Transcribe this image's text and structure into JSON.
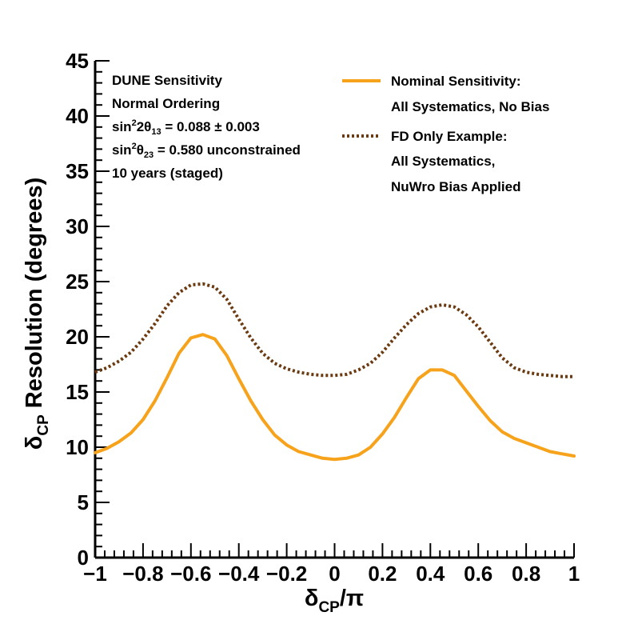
{
  "chart_data": {
    "type": "line",
    "xlabel": {
      "base": "δ",
      "sub": "CP",
      "suffix": "/π"
    },
    "ylabel": {
      "base": "δ",
      "sub": "CP",
      "suffix": " Resolution (degrees)"
    },
    "xlim": [
      -1,
      1
    ],
    "ylim": [
      0,
      45
    ],
    "x_ticks": [
      -1,
      -0.8,
      -0.6,
      -0.4,
      -0.2,
      0,
      0.2,
      0.4,
      0.6,
      0.8,
      1
    ],
    "x_tick_labels": [
      "−1",
      "−0.8",
      "−0.6",
      "−0.4",
      "−0.2",
      "0",
      "0.2",
      "0.4",
      "0.6",
      "0.8",
      "1"
    ],
    "y_ticks": [
      0,
      5,
      10,
      15,
      20,
      25,
      30,
      35,
      40,
      45
    ],
    "y_tick_labels": [
      "0",
      "5",
      "10",
      "15",
      "20",
      "25",
      "30",
      "35",
      "40",
      "45"
    ],
    "grid": false,
    "legend_position": "top-right",
    "annotations": {
      "line1": "DUNE Sensitivity",
      "line2": "Normal Ordering",
      "line3": {
        "pre": "sin",
        "sup": "2",
        "mid": "2θ",
        "sub": "13",
        "post": " = 0.088 ± 0.003"
      },
      "line4": {
        "pre": "sin",
        "sup": "2",
        "mid": "θ",
        "sub": "23",
        "post": " = 0.580 unconstrained"
      },
      "line5": "10 years (staged)"
    },
    "series": [
      {
        "name": "Nominal Sensitivity:",
        "name_line2": "All Systematics, No Bias",
        "color": "#f7a21b",
        "style": "solid",
        "x": [
          -1.0,
          -0.95,
          -0.9,
          -0.85,
          -0.8,
          -0.75,
          -0.7,
          -0.65,
          -0.6,
          -0.55,
          -0.5,
          -0.45,
          -0.4,
          -0.35,
          -0.3,
          -0.25,
          -0.2,
          -0.15,
          -0.1,
          -0.05,
          0.0,
          0.05,
          0.1,
          0.15,
          0.2,
          0.25,
          0.3,
          0.35,
          0.4,
          0.45,
          0.5,
          0.55,
          0.6,
          0.65,
          0.7,
          0.75,
          0.8,
          0.85,
          0.9,
          0.95,
          1.0
        ],
        "y": [
          9.5,
          9.9,
          10.5,
          11.3,
          12.5,
          14.2,
          16.3,
          18.5,
          19.9,
          20.2,
          19.8,
          18.3,
          16.2,
          14.2,
          12.5,
          11.1,
          10.2,
          9.6,
          9.3,
          9.0,
          8.9,
          9.0,
          9.3,
          10.0,
          11.2,
          12.7,
          14.5,
          16.2,
          17.0,
          17.0,
          16.5,
          15.1,
          13.7,
          12.4,
          11.4,
          10.8,
          10.4,
          10.0,
          9.6,
          9.4,
          9.2
        ]
      },
      {
        "name": "FD Only Example:",
        "name_line2": "All Systematics,",
        "name_line3": "NuWro Bias Applied",
        "color": "#6b3a10",
        "style": "dotted",
        "x": [
          -1.0,
          -0.95,
          -0.9,
          -0.85,
          -0.8,
          -0.75,
          -0.7,
          -0.65,
          -0.6,
          -0.55,
          -0.5,
          -0.45,
          -0.4,
          -0.35,
          -0.3,
          -0.25,
          -0.2,
          -0.15,
          -0.1,
          -0.05,
          0.0,
          0.05,
          0.1,
          0.15,
          0.2,
          0.25,
          0.3,
          0.35,
          0.4,
          0.45,
          0.5,
          0.55,
          0.6,
          0.65,
          0.7,
          0.75,
          0.8,
          0.85,
          0.9,
          0.95,
          1.0
        ],
        "y": [
          16.8,
          17.2,
          17.8,
          18.6,
          19.8,
          21.2,
          22.8,
          24.0,
          24.7,
          24.8,
          24.5,
          23.4,
          21.6,
          19.9,
          18.5,
          17.6,
          17.1,
          16.8,
          16.6,
          16.5,
          16.5,
          16.6,
          17.0,
          17.6,
          18.6,
          19.9,
          21.1,
          22.1,
          22.7,
          22.9,
          22.7,
          22.0,
          20.9,
          19.5,
          18.1,
          17.2,
          16.8,
          16.6,
          16.5,
          16.4,
          16.4
        ]
      }
    ]
  }
}
